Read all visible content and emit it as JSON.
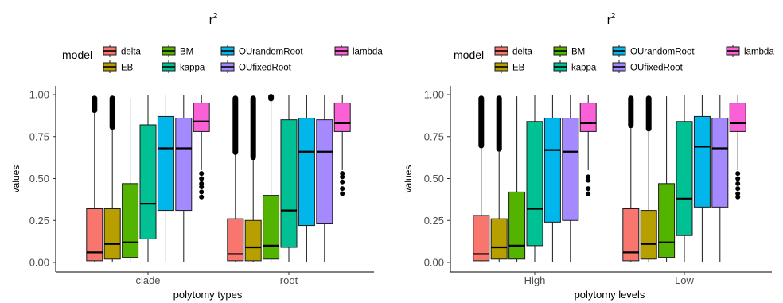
{
  "chart_data": [
    {
      "type": "boxplot",
      "title": "r",
      "title_superscript": "2",
      "xlabel": "polytomy types",
      "ylabel": "values",
      "ylim": [
        0,
        1
      ],
      "yticks": [
        "0.00",
        "0.25",
        "0.50",
        "0.75",
        "1.00"
      ],
      "grid": false,
      "legend_position": "top",
      "legend_title": "model",
      "categories": [
        "clade",
        "root"
      ],
      "series": [
        {
          "name": "delta",
          "color": "#F8766D",
          "boxes": [
            {
              "lower_whisker": 0.0,
              "q1": 0.01,
              "median": 0.06,
              "q3": 0.32,
              "upper_whisker": 0.89,
              "outliers": "dense 0.89-0.98"
            },
            {
              "lower_whisker": 0.0,
              "q1": 0.01,
              "median": 0.05,
              "q3": 0.26,
              "upper_whisker": 0.64,
              "outliers": "dense 0.64-0.98"
            }
          ]
        },
        {
          "name": "EB",
          "color": "#B79F00",
          "boxes": [
            {
              "lower_whisker": 0.0,
              "q1": 0.02,
              "median": 0.11,
              "q3": 0.32,
              "upper_whisker": 0.79,
              "outliers": "dense 0.79-0.98"
            },
            {
              "lower_whisker": 0.0,
              "q1": 0.01,
              "median": 0.09,
              "q3": 0.25,
              "upper_whisker": 0.61,
              "outliers": "dense 0.61-0.98"
            }
          ]
        },
        {
          "name": "BM",
          "color": "#619CFF",
          "boxes": [
            {
              "lower_whisker": 0.0,
              "q1": 0.03,
              "median": 0.12,
              "q3": 0.47,
              "upper_whisker": 0.98,
              "outliers": "none"
            },
            {
              "lower_whisker": 0.0,
              "q1": 0.02,
              "median": 0.1,
              "q3": 0.4,
              "upper_whisker": 0.96,
              "outliers": "few 0.96-0.99"
            }
          ]
        },
        {
          "name": "kappa",
          "color": "#00BA38",
          "boxes": [
            {
              "lower_whisker": 0.0,
              "q1": 0.14,
              "median": 0.35,
              "q3": 0.82,
              "upper_whisker": 1.0,
              "outliers": "none"
            },
            {
              "lower_whisker": 0.0,
              "q1": 0.09,
              "median": 0.31,
              "q3": 0.85,
              "upper_whisker": 1.0,
              "outliers": "none"
            }
          ]
        },
        {
          "name": "OUrandomRoot",
          "color": "#00BFC4",
          "boxes": [
            {
              "lower_whisker": 0.0,
              "q1": 0.31,
              "median": 0.68,
              "q3": 0.87,
              "upper_whisker": 1.0,
              "outliers": "none"
            },
            {
              "lower_whisker": 0.0,
              "q1": 0.22,
              "median": 0.66,
              "q3": 0.86,
              "upper_whisker": 1.0,
              "outliers": "none"
            }
          ]
        },
        {
          "name": "OUfixedRoot",
          "color": "#9590FF",
          "boxes": [
            {
              "lower_whisker": 0.0,
              "q1": 0.31,
              "median": 0.68,
              "q3": 0.86,
              "upper_whisker": 1.0,
              "outliers": "none"
            },
            {
              "lower_whisker": 0.0,
              "q1": 0.23,
              "median": 0.66,
              "q3": 0.85,
              "upper_whisker": 1.0,
              "outliers": "none"
            }
          ]
        },
        {
          "name": "lambda",
          "color": "#F564E3",
          "boxes": [
            {
              "lower_whisker": 0.55,
              "q1": 0.78,
              "median": 0.84,
              "q3": 0.95,
              "upper_whisker": 1.0,
              "outliers": [
                0.53,
                0.5,
                0.47,
                0.45,
                0.42,
                0.39
              ]
            },
            {
              "lower_whisker": 0.55,
              "q1": 0.78,
              "median": 0.83,
              "q3": 0.95,
              "upper_whisker": 1.0,
              "outliers": [
                0.53,
                0.51,
                0.48,
                0.44,
                0.41
              ]
            }
          ]
        }
      ]
    },
    {
      "type": "boxplot",
      "title": "r",
      "title_superscript": "2",
      "xlabel": "polytomy levels",
      "ylabel": "values",
      "ylim": [
        0,
        1
      ],
      "yticks": [
        "0.00",
        "0.25",
        "0.50",
        "0.75",
        "1.00"
      ],
      "grid": false,
      "legend_position": "top",
      "legend_title": "model",
      "categories": [
        "High",
        "Low"
      ],
      "series": [
        {
          "name": "delta",
          "color": "#F8766D",
          "boxes": [
            {
              "lower_whisker": 0.0,
              "q1": 0.01,
              "median": 0.05,
              "q3": 0.28,
              "upper_whisker": 0.68,
              "outliers": "dense 0.68-0.98"
            },
            {
              "lower_whisker": 0.0,
              "q1": 0.01,
              "median": 0.06,
              "q3": 0.32,
              "upper_whisker": 0.8,
              "outliers": "dense 0.80-0.98"
            }
          ]
        },
        {
          "name": "EB",
          "color": "#B79F00",
          "boxes": [
            {
              "lower_whisker": 0.0,
              "q1": 0.02,
              "median": 0.09,
              "q3": 0.26,
              "upper_whisker": 0.66,
              "outliers": "dense 0.66-0.98"
            },
            {
              "lower_whisker": 0.0,
              "q1": 0.02,
              "median": 0.11,
              "q3": 0.31,
              "upper_whisker": 0.78,
              "outliers": "dense 0.78-0.98"
            }
          ]
        },
        {
          "name": "BM",
          "color": "#619CFF",
          "boxes": [
            {
              "lower_whisker": 0.0,
              "q1": 0.02,
              "median": 0.1,
              "q3": 0.42,
              "upper_whisker": 0.99,
              "outliers": "none"
            },
            {
              "lower_whisker": 0.0,
              "q1": 0.03,
              "median": 0.12,
              "q3": 0.47,
              "upper_whisker": 0.99,
              "outliers": "none"
            }
          ]
        },
        {
          "name": "kappa",
          "color": "#00BA38",
          "boxes": [
            {
              "lower_whisker": 0.0,
              "q1": 0.1,
              "median": 0.32,
              "q3": 0.84,
              "upper_whisker": 1.0,
              "outliers": "none"
            },
            {
              "lower_whisker": 0.0,
              "q1": 0.16,
              "median": 0.38,
              "q3": 0.84,
              "upper_whisker": 1.0,
              "outliers": "none"
            }
          ]
        },
        {
          "name": "OUrandomRoot",
          "color": "#00BFC4",
          "boxes": [
            {
              "lower_whisker": 0.0,
              "q1": 0.24,
              "median": 0.67,
              "q3": 0.86,
              "upper_whisker": 1.0,
              "outliers": "none"
            },
            {
              "lower_whisker": 0.0,
              "q1": 0.33,
              "median": 0.69,
              "q3": 0.87,
              "upper_whisker": 1.0,
              "outliers": "none"
            }
          ]
        },
        {
          "name": "OUfixedRoot",
          "color": "#9590FF",
          "boxes": [
            {
              "lower_whisker": 0.0,
              "q1": 0.25,
              "median": 0.66,
              "q3": 0.86,
              "upper_whisker": 1.0,
              "outliers": "none"
            },
            {
              "lower_whisker": 0.0,
              "q1": 0.33,
              "median": 0.68,
              "q3": 0.86,
              "upper_whisker": 1.0,
              "outliers": "none"
            }
          ]
        },
        {
          "name": "lambda",
          "color": "#F564E3",
          "boxes": [
            {
              "lower_whisker": 0.55,
              "q1": 0.78,
              "median": 0.83,
              "q3": 0.95,
              "upper_whisker": 1.0,
              "outliers": [
                0.51,
                0.49,
                0.44,
                0.41
              ]
            },
            {
              "lower_whisker": 0.55,
              "q1": 0.78,
              "median": 0.83,
              "q3": 0.95,
              "upper_whisker": 1.0,
              "outliers": [
                0.53,
                0.5,
                0.47,
                0.44,
                0.41,
                0.39
              ]
            }
          ]
        }
      ]
    }
  ],
  "legend_swatch_colors": {
    "delta": "#F8766D",
    "EB": "#B79F00",
    "BM": "#53B400",
    "kappa": "#00C094",
    "OUrandomRoot": "#00B6EB",
    "OUfixedRoot": "#A58AFF",
    "lambda": "#FB61D7"
  }
}
